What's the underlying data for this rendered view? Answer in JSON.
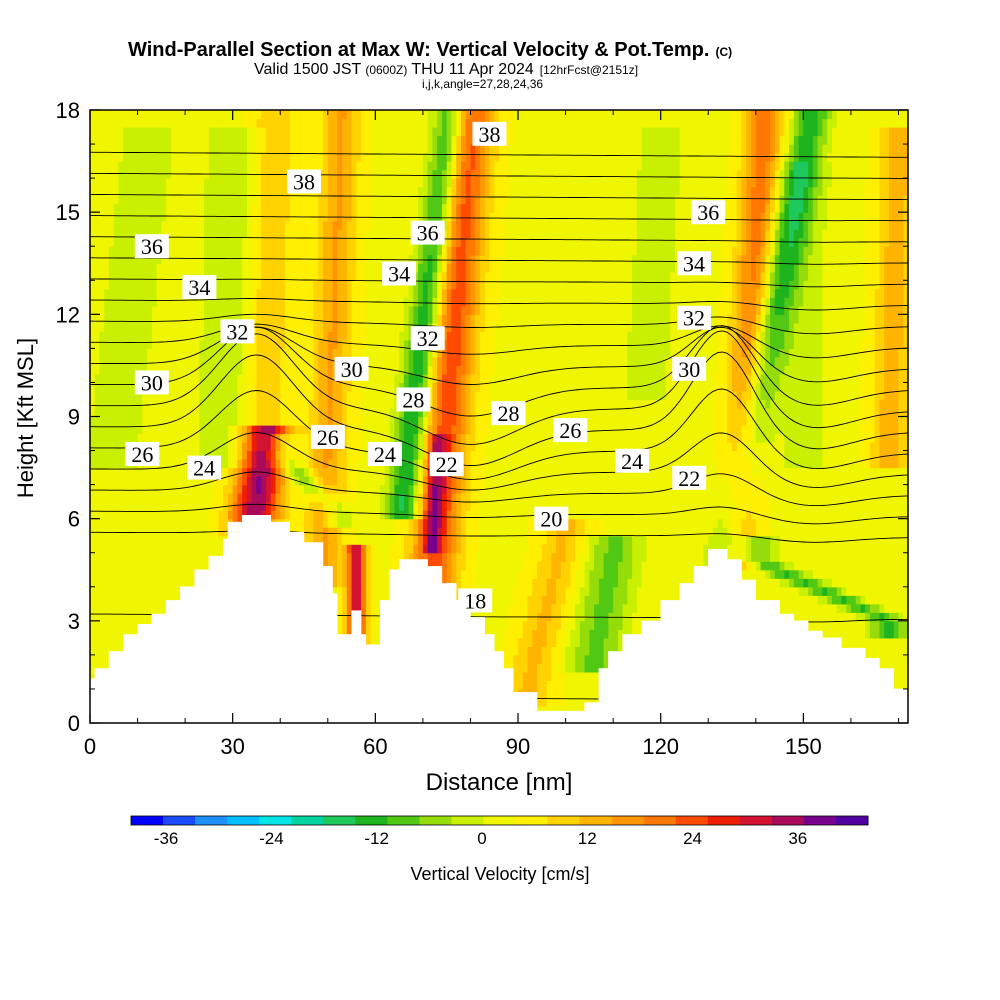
{
  "chart_data": {
    "type": "heatmap",
    "title": "Wind-Parallel Section at Max W: Vertical Velocity & Pot.Temp.",
    "title_mark": "(C)",
    "subtitle_valid": "Valid 1500 JST",
    "subtitle_utc": "(0600Z)",
    "subtitle_date": "THU 11 Apr 2024",
    "subtitle_fcst": "[12hrFcst@2151z]",
    "subtitle_ijk": "i,j,k,angle=27,28,24,36",
    "xlabel": "Distance [nm]",
    "ylabel": "Height [Kft MSL]",
    "xlim": [
      0,
      172
    ],
    "ylim": [
      0,
      18
    ],
    "x_ticks": [
      "0",
      "30",
      "60",
      "90",
      "120",
      "150"
    ],
    "x_tick_values": [
      0,
      30,
      60,
      90,
      120,
      150
    ],
    "y_ticks": [
      "0",
      "3",
      "6",
      "9",
      "12",
      "15",
      "18"
    ],
    "y_tick_values": [
      0,
      3,
      6,
      9,
      12,
      15,
      18
    ],
    "colorbar_label": "Vertical Velocity [cm/s]",
    "colorbar_ticks": [
      "-36",
      "-24",
      "-12",
      "0",
      "12",
      "24",
      "36"
    ],
    "colorbar_tick_values": [
      -36,
      -24,
      -12,
      0,
      12,
      24,
      36
    ],
    "colorbar_range": [
      -40,
      44
    ],
    "colorbar_colors": [
      "#0000ff",
      "#1a4bff",
      "#1e90ff",
      "#00bfff",
      "#00e5e5",
      "#00d2a0",
      "#1ec85a",
      "#1eb41e",
      "#50c814",
      "#96dc0a",
      "#c8f000",
      "#f0f500",
      "#ffef00",
      "#ffd200",
      "#ffb400",
      "#ff9600",
      "#ff7800",
      "#ff4b00",
      "#f01e00",
      "#d21432",
      "#aa0a5a",
      "#78008c",
      "#5000a0"
    ],
    "terrain": [
      [
        0,
        1.3
      ],
      [
        1,
        1.3
      ],
      [
        1,
        1.6
      ],
      [
        4,
        1.6
      ],
      [
        4,
        2.1
      ],
      [
        7,
        2.1
      ],
      [
        7,
        2.6
      ],
      [
        10,
        2.6
      ],
      [
        10,
        2.9
      ],
      [
        13,
        2.9
      ],
      [
        13,
        3.2
      ],
      [
        16,
        3.2
      ],
      [
        16,
        3.6
      ],
      [
        19,
        3.6
      ],
      [
        19,
        4.0
      ],
      [
        22,
        4.0
      ],
      [
        22,
        4.5
      ],
      [
        25,
        4.5
      ],
      [
        25,
        4.9
      ],
      [
        28,
        4.9
      ],
      [
        28,
        5.4
      ],
      [
        29,
        5.4
      ],
      [
        29,
        5.9
      ],
      [
        32,
        5.9
      ],
      [
        32,
        6.1
      ],
      [
        38,
        6.1
      ],
      [
        38,
        5.9
      ],
      [
        42,
        5.9
      ],
      [
        42,
        5.6
      ],
      [
        45,
        5.6
      ],
      [
        45,
        5.3
      ],
      [
        49,
        5.3
      ],
      [
        49,
        4.6
      ],
      [
        51,
        4.6
      ],
      [
        51,
        3.8
      ],
      [
        52,
        3.8
      ],
      [
        52,
        2.6
      ],
      [
        55,
        2.6
      ],
      [
        55,
        3.3
      ],
      [
        57,
        3.3
      ],
      [
        57,
        2.6
      ],
      [
        58,
        2.6
      ],
      [
        58,
        2.3
      ],
      [
        61,
        2.3
      ],
      [
        61,
        3.6
      ],
      [
        63,
        3.6
      ],
      [
        63,
        4.5
      ],
      [
        65,
        4.5
      ],
      [
        65,
        4.8
      ],
      [
        71,
        4.8
      ],
      [
        71,
        4.6
      ],
      [
        74,
        4.6
      ],
      [
        74,
        4.1
      ],
      [
        77,
        4.1
      ],
      [
        77,
        3.6
      ],
      [
        80,
        3.6
      ],
      [
        80,
        3.1
      ],
      [
        83,
        3.1
      ],
      [
        83,
        2.6
      ],
      [
        85,
        2.6
      ],
      [
        85,
        2.1
      ],
      [
        87,
        2.1
      ],
      [
        87,
        1.6
      ],
      [
        89,
        1.6
      ],
      [
        89,
        0.9
      ],
      [
        94,
        0.9
      ],
      [
        94,
        0.35
      ],
      [
        104,
        0.35
      ],
      [
        104,
        0.6
      ],
      [
        107,
        0.6
      ],
      [
        107,
        1.6
      ],
      [
        109,
        1.6
      ],
      [
        109,
        2.1
      ],
      [
        112,
        2.1
      ],
      [
        112,
        2.6
      ],
      [
        116,
        2.6
      ],
      [
        116,
        3.0
      ],
      [
        120,
        3.0
      ],
      [
        120,
        3.6
      ],
      [
        124,
        3.6
      ],
      [
        124,
        4.1
      ],
      [
        127,
        4.1
      ],
      [
        127,
        4.6
      ],
      [
        130,
        4.6
      ],
      [
        130,
        5.1
      ],
      [
        134,
        5.1
      ],
      [
        134,
        4.8
      ],
      [
        137,
        4.8
      ],
      [
        137,
        4.2
      ],
      [
        140,
        4.2
      ],
      [
        140,
        3.6
      ],
      [
        145,
        3.6
      ],
      [
        145,
        3.2
      ],
      [
        148,
        3.2
      ],
      [
        148,
        3.0
      ],
      [
        151,
        3.0
      ],
      [
        151,
        2.7
      ],
      [
        154,
        2.7
      ],
      [
        154,
        2.5
      ],
      [
        158,
        2.5
      ],
      [
        158,
        2.2
      ],
      [
        163,
        2.2
      ],
      [
        163,
        1.9
      ],
      [
        166,
        1.9
      ],
      [
        166,
        1.6
      ],
      [
        169,
        1.6
      ],
      [
        169,
        1.0
      ],
      [
        172,
        1.0
      ]
    ],
    "vv_background": 3,
    "vv_features": [
      {
        "x0": 36,
        "x1": 39,
        "y0": 6.5,
        "y1": 18,
        "w": 4.5,
        "v": 8
      },
      {
        "x0": 49,
        "x1": 53,
        "y0": 4.5,
        "y1": 18,
        "w": 4,
        "v": 12
      },
      {
        "x0": 72,
        "x1": 80,
        "y0": 4.2,
        "y1": 18,
        "w": 5,
        "v": 22
      },
      {
        "x0": 72,
        "x1": 73,
        "y0": 5.5,
        "y1": 7.8,
        "w": 2,
        "v": 14
      },
      {
        "x0": 66,
        "x1": 76,
        "y0": 6.5,
        "y1": 18,
        "w": 3.5,
        "v": -20
      },
      {
        "x0": 136,
        "x1": 142,
        "y0": 5.0,
        "y1": 18,
        "w": 4,
        "v": 18
      },
      {
        "x0": 134,
        "x1": 152,
        "y0": 5.0,
        "y1": 18,
        "w": 4,
        "v": -16
      },
      {
        "x0": 34,
        "x1": 37,
        "y0": 6.0,
        "y1": 8.2,
        "w": 5,
        "v": 26
      },
      {
        "x0": 40,
        "x1": 52,
        "y0": 7.8,
        "y1": 6.3,
        "w": 3,
        "v": -12
      },
      {
        "x0": 56,
        "x1": 56,
        "y0": 2.6,
        "y1": 4.6,
        "w": 2,
        "v": 30
      },
      {
        "x0": 92,
        "x1": 100,
        "y0": 1.0,
        "y1": 5.5,
        "w": 5,
        "v": 9
      },
      {
        "x0": 106,
        "x1": 110,
        "y0": 2.0,
        "y1": 5.0,
        "w": 6,
        "v": -11
      },
      {
        "x0": 140,
        "x1": 168,
        "y0": 4.8,
        "y1": 3.0,
        "w": 4,
        "v": -14
      },
      {
        "x0": 5,
        "x1": 12,
        "y0": 8,
        "y1": 17,
        "w": 6,
        "v": -6
      },
      {
        "x0": 28,
        "x1": 30,
        "y0": 8,
        "y1": 17,
        "w": 6,
        "v": -6
      },
      {
        "x0": 168,
        "x1": 170,
        "y0": 8,
        "y1": 17,
        "w": 4,
        "v": 10
      },
      {
        "x0": 150,
        "x1": 150,
        "y0": 8,
        "y1": 16,
        "w": 6,
        "v": -4
      },
      {
        "x0": 117,
        "x1": 120,
        "y0": 10,
        "y1": 17,
        "w": 7,
        "v": -4
      }
    ],
    "theta_levels": [
      18,
      19,
      20,
      21,
      22,
      23,
      24,
      25,
      26,
      27,
      28,
      29,
      30,
      31,
      32,
      33,
      34,
      35,
      36,
      37,
      38
    ],
    "theta_labels": [
      {
        "text": "38",
        "x": 45,
        "y": 15.9
      },
      {
        "text": "38",
        "x": 84,
        "y": 17.3
      },
      {
        "text": "36",
        "x": 13,
        "y": 14.0
      },
      {
        "text": "36",
        "x": 71,
        "y": 14.4
      },
      {
        "text": "36",
        "x": 130,
        "y": 15.0
      },
      {
        "text": "34",
        "x": 23,
        "y": 12.8
      },
      {
        "text": "34",
        "x": 65,
        "y": 13.2
      },
      {
        "text": "34",
        "x": 127,
        "y": 13.5
      },
      {
        "text": "32",
        "x": 31,
        "y": 11.5
      },
      {
        "text": "32",
        "x": 71,
        "y": 11.3
      },
      {
        "text": "32",
        "x": 127,
        "y": 11.9
      },
      {
        "text": "30",
        "x": 13,
        "y": 10.0
      },
      {
        "text": "30",
        "x": 55,
        "y": 10.4
      },
      {
        "text": "30",
        "x": 126,
        "y": 10.4
      },
      {
        "text": "28",
        "x": 68,
        "y": 9.5
      },
      {
        "text": "28",
        "x": 88,
        "y": 9.1
      },
      {
        "text": "26",
        "x": 11,
        "y": 7.9
      },
      {
        "text": "26",
        "x": 50,
        "y": 8.4
      },
      {
        "text": "26",
        "x": 101,
        "y": 8.6
      },
      {
        "text": "24",
        "x": 24,
        "y": 7.5
      },
      {
        "text": "24",
        "x": 62,
        "y": 7.9
      },
      {
        "text": "24",
        "x": 114,
        "y": 7.7
      },
      {
        "text": "22",
        "x": 75,
        "y": 7.6
      },
      {
        "text": "22",
        "x": 126,
        "y": 7.2
      },
      {
        "text": "20",
        "x": 97,
        "y": 6.0
      },
      {
        "text": "18",
        "x": 81,
        "y": 3.6
      }
    ]
  }
}
